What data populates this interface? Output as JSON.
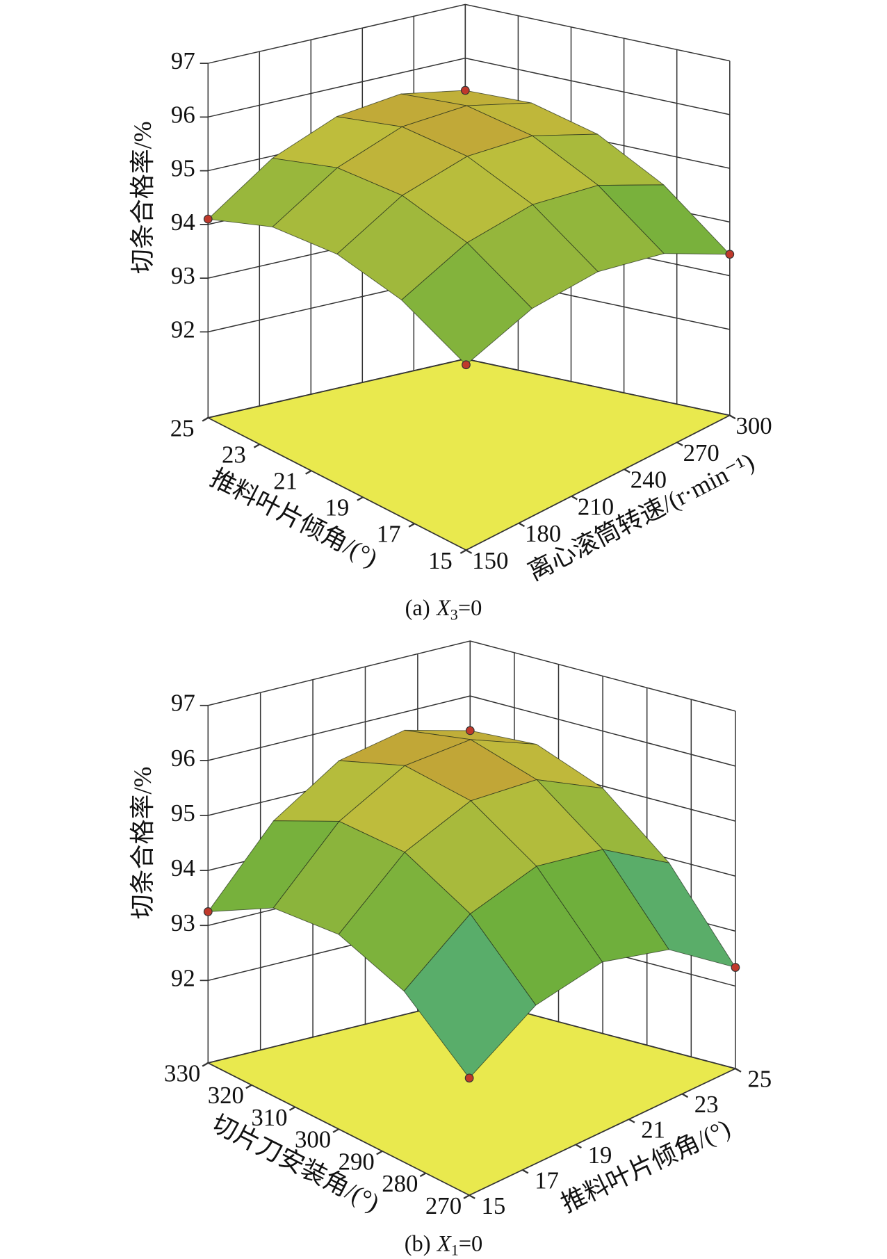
{
  "chart_data": [
    {
      "type": "surface",
      "xlabel": "推料叶片倾角/(°)",
      "ylabel": "离心滚筒转速/(r·min⁻¹)",
      "zlabel": "切条合格率/%",
      "caption": {
        "label": "(a)",
        "variable": "X",
        "subscript": "3",
        "text": "=0"
      },
      "x": [
        15,
        17.5,
        20,
        22.5,
        25
      ],
      "y": [
        150,
        187.5,
        225,
        262.5,
        300
      ],
      "z": [
        [
          93.85,
          94.27,
          94.33,
          94.04,
          93.4
        ],
        [
          94.44,
          94.97,
          95.14,
          94.96,
          94.43
        ],
        [
          94.68,
          95.32,
          95.6,
          95.53,
          95.11
        ],
        [
          94.57,
          95.31,
          95.71,
          95.74,
          95.43
        ],
        [
          94.1,
          94.96,
          95.46,
          95.61,
          95.4
        ]
      ],
      "xlim": [
        15,
        25
      ],
      "xticks": [
        15,
        17,
        19,
        21,
        23,
        25
      ],
      "ylim": [
        150,
        300
      ],
      "yticks": [
        150,
        180,
        210,
        240,
        270,
        300
      ],
      "zlim": [
        90.4,
        97
      ],
      "zticks": [
        92,
        93,
        94,
        95,
        96,
        97
      ]
    },
    {
      "type": "surface",
      "xlabel": "切片刀安装角/(°)",
      "ylabel": "推料叶片倾角/(°)",
      "zlabel": "切条合格率/%",
      "caption": {
        "label": "(b)",
        "variable": "X",
        "subscript": "1",
        "text": "=0"
      },
      "x": [
        270,
        285,
        300,
        315,
        330
      ],
      "y": [
        15,
        17.5,
        20,
        22.5,
        25
      ],
      "z": [
        [
          92.63,
          93.38,
          93.59,
          93.24,
          92.34
        ],
        [
          93.61,
          94.51,
          94.87,
          94.67,
          93.92
        ],
        [
          94.04,
          95.1,
          95.6,
          95.55,
          94.96
        ],
        [
          93.92,
          95.13,
          95.78,
          95.89,
          95.44
        ],
        [
          93.25,
          94.61,
          95.41,
          95.67,
          95.37
        ]
      ],
      "xlim": [
        270,
        330
      ],
      "xticks": [
        270,
        280,
        290,
        300,
        310,
        320,
        330
      ],
      "ylim": [
        15,
        25
      ],
      "yticks": [
        15,
        17,
        19,
        21,
        23,
        25
      ],
      "zlim": [
        90.5,
        97
      ],
      "zticks": [
        92,
        93,
        94,
        95,
        96,
        97
      ]
    }
  ]
}
